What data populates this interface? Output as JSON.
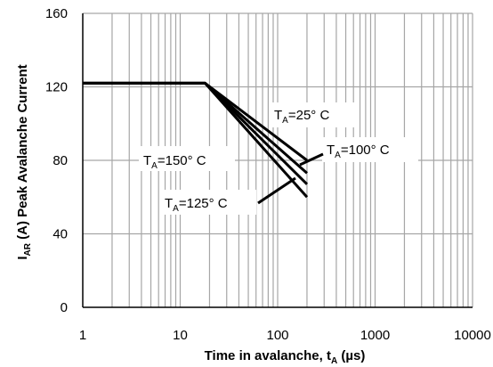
{
  "chart_data": {
    "type": "line",
    "x_scale": "log",
    "xlim": [
      1,
      10000
    ],
    "ylim": [
      0,
      160
    ],
    "x_ticks": [
      "1",
      "10",
      "100",
      "1000",
      "10000"
    ],
    "y_ticks": [
      "0",
      "40",
      "80",
      "120",
      "160"
    ],
    "xlabel": {
      "main": "Time in avalanche, t",
      "sub": "A",
      "unit": " (µs)"
    },
    "ylabel": {
      "main": "I",
      "sub": "AR",
      "rest": " (A) Peak Avalanche Current"
    },
    "grid": true,
    "colors": {
      "line": "#000000",
      "grid": "#a6a6a6",
      "axis": "#000000"
    },
    "series": [
      {
        "name": "T_A=25° C",
        "x": [
          1,
          18,
          200
        ],
        "y": [
          122,
          122,
          80
        ]
      },
      {
        "name": "T_A=100° C",
        "x": [
          1,
          18,
          200
        ],
        "y": [
          122,
          122,
          73
        ]
      },
      {
        "name": "T_A=125° C",
        "x": [
          1,
          18,
          200
        ],
        "y": [
          122,
          122,
          67
        ]
      },
      {
        "name": "T_A=150° C",
        "x": [
          1,
          18,
          200
        ],
        "y": [
          122,
          122,
          60
        ]
      }
    ],
    "annotations": [
      {
        "T": "T",
        "sub": "A",
        "rest": "=25° C"
      },
      {
        "T": "T",
        "sub": "A",
        "rest": "=100° C"
      },
      {
        "T": "T",
        "sub": "A",
        "rest": "=150° C"
      },
      {
        "T": "T",
        "sub": "A",
        "rest": "=125° C"
      }
    ]
  }
}
